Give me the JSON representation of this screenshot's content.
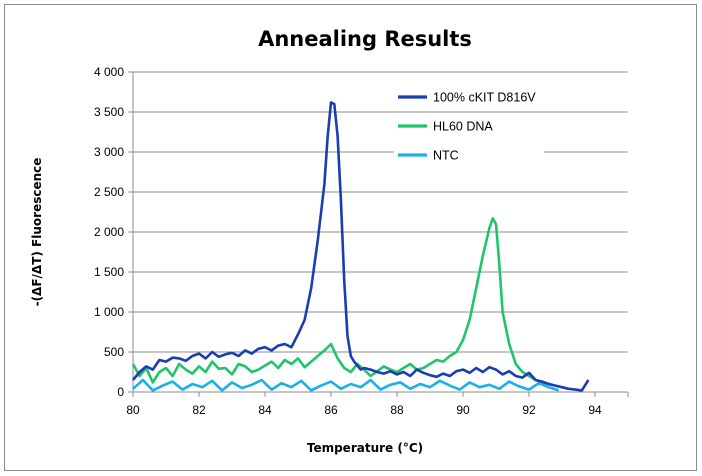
{
  "chart_data": {
    "type": "line",
    "title": "Annealing Results",
    "xlabel": "Temperature (°C)",
    "ylabel": "-(ΔF/ΔT) Fluorescence",
    "xlim": [
      80,
      95
    ],
    "ylim": [
      0,
      4000
    ],
    "x_ticks": [
      80,
      82,
      84,
      86,
      88,
      90,
      92,
      94
    ],
    "x_tick_labels": [
      "80",
      "82",
      "84",
      "86",
      "88",
      "90",
      "92",
      "94"
    ],
    "y_ticks": [
      0,
      500,
      1000,
      1500,
      2000,
      2500,
      3000,
      3500,
      4000
    ],
    "y_tick_labels": [
      "0",
      "500",
      "1 000",
      "1 500",
      "2 000",
      "2 500",
      "3 000",
      "3 500",
      "4 000"
    ],
    "grid": "horizontal",
    "legend_position": "top-right",
    "series": [
      {
        "name": "100% cKIT D816V",
        "color": "#1a3db5",
        "x": [
          80.0,
          80.2,
          80.4,
          80.6,
          80.8,
          81.0,
          81.2,
          81.4,
          81.6,
          81.8,
          82.0,
          82.2,
          82.4,
          82.6,
          82.8,
          83.0,
          83.2,
          83.4,
          83.6,
          83.8,
          84.0,
          84.2,
          84.4,
          84.6,
          84.8,
          85.0,
          85.2,
          85.4,
          85.6,
          85.8,
          85.9,
          86.0,
          86.1,
          86.2,
          86.3,
          86.4,
          86.5,
          86.6,
          86.7,
          86.8,
          86.9,
          87.0,
          87.2,
          87.4,
          87.6,
          87.8,
          88.0,
          88.2,
          88.4,
          88.6,
          88.8,
          89.0,
          89.2,
          89.4,
          89.6,
          89.8,
          90.0,
          90.2,
          90.4,
          90.6,
          90.8,
          91.0,
          91.2,
          91.4,
          91.6,
          91.8,
          92.0,
          92.2,
          92.4,
          92.6,
          92.8,
          93.0,
          93.2,
          93.4,
          93.6,
          93.8
        ],
        "y": [
          150,
          250,
          320,
          280,
          400,
          380,
          430,
          420,
          390,
          450,
          480,
          420,
          500,
          440,
          470,
          490,
          450,
          520,
          480,
          540,
          560,
          520,
          580,
          600,
          560,
          720,
          900,
          1300,
          1900,
          2600,
          3200,
          3620,
          3600,
          3200,
          2400,
          1400,
          700,
          450,
          380,
          330,
          280,
          300,
          280,
          250,
          230,
          260,
          220,
          250,
          200,
          280,
          240,
          210,
          190,
          230,
          200,
          260,
          280,
          240,
          300,
          250,
          310,
          280,
          220,
          260,
          200,
          180,
          240,
          150,
          130,
          100,
          80,
          60,
          40,
          30,
          20,
          150
        ]
      },
      {
        "name": "HL60 DNA",
        "color": "#1fc46b",
        "x": [
          80.0,
          80.2,
          80.4,
          80.6,
          80.8,
          81.0,
          81.2,
          81.4,
          81.6,
          81.8,
          82.0,
          82.2,
          82.4,
          82.6,
          82.8,
          83.0,
          83.2,
          83.4,
          83.6,
          83.8,
          84.0,
          84.2,
          84.4,
          84.6,
          84.8,
          85.0,
          85.2,
          85.4,
          85.6,
          85.8,
          86.0,
          86.2,
          86.4,
          86.6,
          86.8,
          87.0,
          87.2,
          87.4,
          87.6,
          87.8,
          88.0,
          88.2,
          88.4,
          88.6,
          88.8,
          89.0,
          89.2,
          89.4,
          89.6,
          89.8,
          90.0,
          90.2,
          90.4,
          90.6,
          90.8,
          90.9,
          91.0,
          91.1,
          91.2,
          91.4,
          91.6,
          91.8,
          92.0,
          92.2,
          92.4,
          92.6,
          92.8
        ],
        "y": [
          350,
          200,
          300,
          120,
          250,
          300,
          200,
          350,
          280,
          230,
          320,
          250,
          380,
          290,
          300,
          220,
          350,
          320,
          250,
          280,
          330,
          380,
          300,
          400,
          350,
          420,
          310,
          380,
          450,
          520,
          600,
          420,
          300,
          250,
          350,
          280,
          200,
          260,
          320,
          280,
          250,
          300,
          350,
          280,
          300,
          350,
          400,
          380,
          450,
          500,
          650,
          900,
          1300,
          1700,
          2050,
          2170,
          2100,
          1600,
          1000,
          600,
          350,
          250,
          200,
          150,
          120,
          100,
          80
        ]
      },
      {
        "name": "NTC",
        "color": "#1ab0e8",
        "x": [
          80.0,
          80.3,
          80.6,
          80.9,
          81.2,
          81.5,
          81.8,
          82.1,
          82.4,
          82.7,
          83.0,
          83.3,
          83.6,
          83.9,
          84.2,
          84.5,
          84.8,
          85.1,
          85.4,
          85.7,
          86.0,
          86.3,
          86.6,
          86.9,
          87.2,
          87.5,
          87.8,
          88.1,
          88.4,
          88.7,
          89.0,
          89.3,
          89.6,
          89.9,
          90.2,
          90.5,
          90.8,
          91.1,
          91.4,
          91.7,
          92.0,
          92.3,
          92.6,
          92.9
        ],
        "y": [
          40,
          150,
          20,
          80,
          130,
          30,
          100,
          60,
          140,
          20,
          120,
          50,
          90,
          150,
          30,
          110,
          60,
          140,
          20,
          80,
          130,
          40,
          100,
          60,
          150,
          30,
          90,
          120,
          40,
          100,
          60,
          140,
          80,
          30,
          120,
          60,
          90,
          40,
          130,
          70,
          30,
          110,
          60,
          20
        ]
      }
    ]
  }
}
